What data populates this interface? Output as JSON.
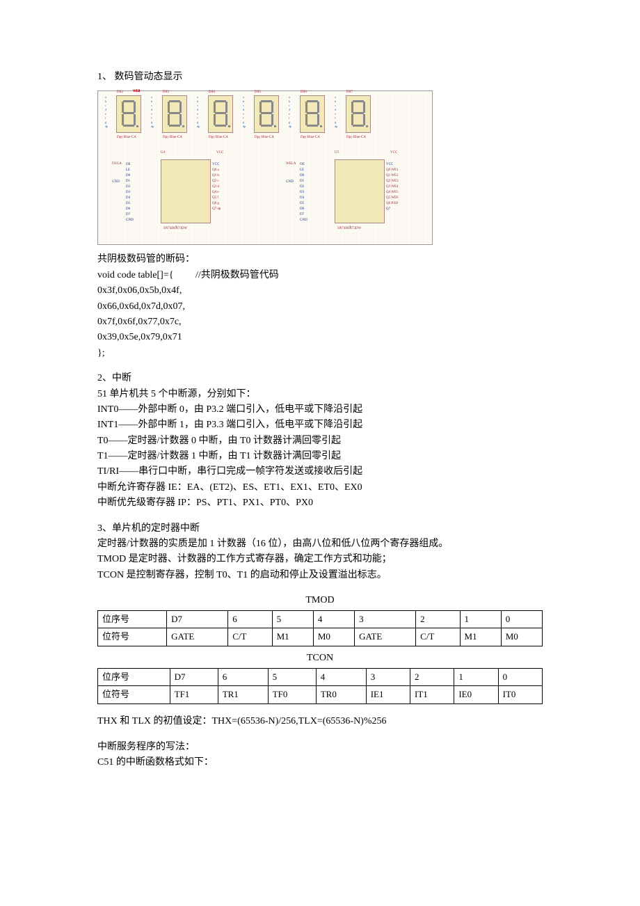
{
  "section1": {
    "heading": "1、 数码管动态显示",
    "diagram": {
      "led_count": 6,
      "led_label": "Dpy Blue-CA",
      "led_top_labels": [
        "DS2",
        "DS3",
        "DS4",
        "DS5",
        "DS6",
        "DS7"
      ],
      "wire_labels": [
        "WE1",
        "WE2",
        "WE3",
        "WE4",
        "WE5",
        "WE6"
      ],
      "pin_labels": [
        "a",
        "b",
        "c",
        "d",
        "e",
        "f",
        "g",
        "dp"
      ],
      "chip_count": 2,
      "chip_name": "SN74HC573DW",
      "chip_labels": [
        "U4",
        "U5"
      ],
      "ctrl_labels": [
        "DULA",
        "WELA"
      ],
      "chip_left_pins": [
        "OE",
        "LE",
        "D0",
        "D1",
        "D2",
        "D3",
        "D4",
        "D5",
        "D6",
        "D7",
        "GND"
      ],
      "chip_right_pins": [
        "VCC",
        "Q0",
        "Q1",
        "Q2",
        "Q3",
        "Q4",
        "Q5",
        "Q6",
        "Q7"
      ],
      "right_nets_u4": [
        "a",
        "b",
        "c",
        "d",
        "e",
        "f",
        "g",
        "dp"
      ],
      "right_nets_u5": [
        "WE1",
        "WE2",
        "WE3",
        "WE4",
        "WE5",
        "WE6",
        "P.6D"
      ],
      "vcc_label": "VCC",
      "gnd_label": "GND",
      "bg_color": "#fefbf4",
      "led_bg": "#f2e8b8",
      "chip_bg": "#f2e8b8",
      "wire_color": "#003090",
      "red_label_color": "#a02030",
      "seg_color": "#888888"
    },
    "code_caption": "共阴极数码管的断码：",
    "code_line1": "void code table[]={",
    "code_comment": "//共阴极数码管代码",
    "code_rows": [
      "0x3f,0x06,0x5b,0x4f,",
      "0x66,0x6d,0x7d,0x07,",
      "0x7f,0x6f,0x77,0x7c,",
      "0x39,0x5e,0x79,0x71"
    ],
    "code_close": "   };"
  },
  "section2": {
    "heading": "2、中断",
    "lines": [
      "51 单片机共 5 个中断源，分别如下：",
      "INT0——外部中断 0，由 P3.2 端口引入，低电平或下降沿引起",
      "INT1——外部中断 1，由 P3.3 端口引入，低电平或下降沿引起",
      "T0——定时器/计数器 0 中断，由 T0 计数器计满回零引起",
      "T1——定时器/计数器 1 中断，由 T1 计数器计满回零引起",
      "TI/RI——串行口中断，串行口完成一帧字符发送或接收后引起",
      "中断允许寄存器 IE：EA、(ET2)、ES、ET1、EX1、ET0、EX0",
      "中断优先级寄存器 IP：PS、PT1、PX1、PT0、PX0"
    ]
  },
  "section3": {
    "heading": "3、单片机的定时器中断",
    "intro": [
      "定时器/计数器的实质是加 1 计数器（16 位），由高八位和低八位两个寄存器组成。",
      "TMOD 是定时器、计数器的工作方式寄存器，确定工作方式和功能；",
      "TCON 是控制寄存器，控制 T0、T1 的启动和停止及设置溢出标志。"
    ],
    "tmod": {
      "title": "TMOD",
      "row1_label": "位序号",
      "row1": [
        "D7",
        "6",
        "5",
        "4",
        "3",
        "2",
        "1",
        "0"
      ],
      "row2_label": "位符号",
      "row2": [
        "GATE",
        "C/T",
        "M1",
        "M0",
        "GATE",
        "C/T",
        "M1",
        "M0"
      ]
    },
    "tcon": {
      "title": "TCON",
      "row1_label": "位序号",
      "row1": [
        "D7",
        "6",
        "5",
        "4",
        "3",
        "2",
        "1",
        "0"
      ],
      "row2_label": "位符号",
      "row2": [
        "TF1",
        "TR1",
        "TF0",
        "TR0",
        "IE1",
        "IT1",
        "IE0",
        "IT0"
      ]
    },
    "formula": "THX 和 TLX 的初值设定：THX=(65536-N)/256,TLX=(65536-N)%256",
    "outro": [
      "中断服务程序的写法：",
      "C51 的中断函数格式如下："
    ]
  }
}
